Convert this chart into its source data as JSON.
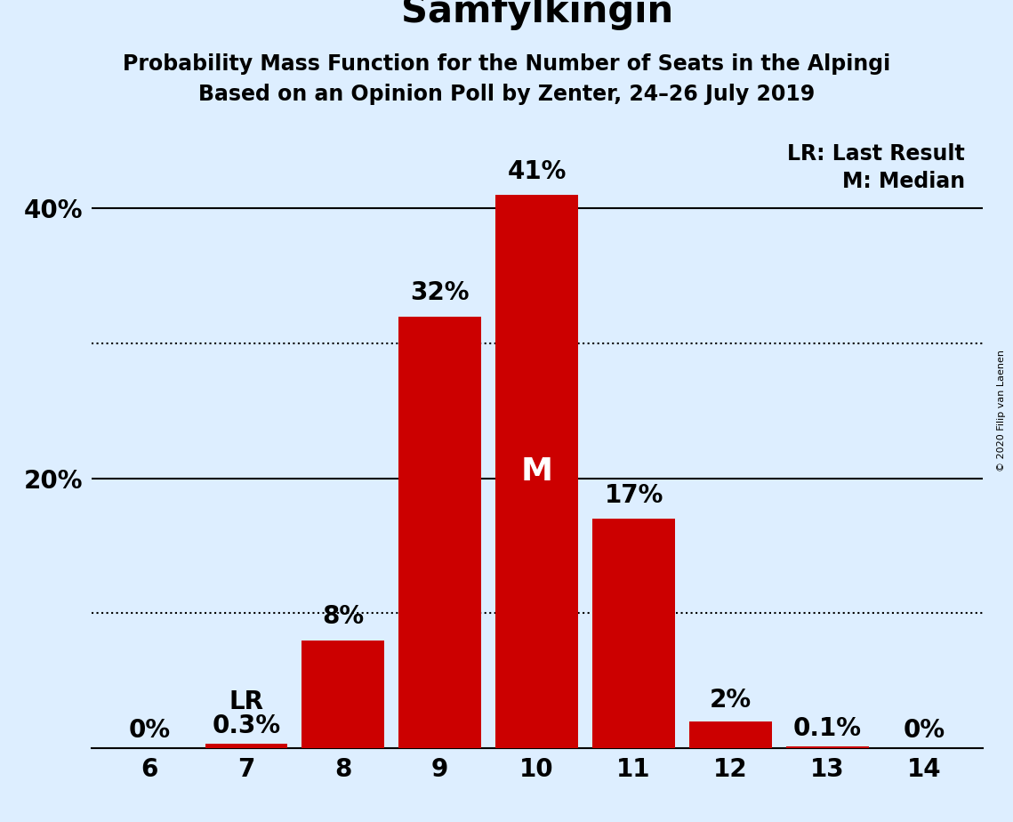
{
  "title": "Samfylkingin",
  "subtitle1": "Probability Mass Function for the Number of Seats in the Alpingi",
  "subtitle2": "Based on an Opinion Poll by Zenter, 24–26 July 2019",
  "copyright": "© 2020 Filip van Laenen",
  "seats": [
    6,
    7,
    8,
    9,
    10,
    11,
    12,
    13,
    14
  ],
  "probabilities": [
    0.0,
    0.3,
    8.0,
    32.0,
    41.0,
    17.0,
    2.0,
    0.1,
    0.0
  ],
  "bar_color": "#cc0000",
  "background_color": "#ddeeff",
  "title_fontsize": 30,
  "subtitle_fontsize": 17,
  "tick_fontsize": 20,
  "bar_label_fontsize": 20,
  "legend_fontsize": 17,
  "copyright_fontsize": 8,
  "ylim_max": 46,
  "yticks": [
    20,
    40
  ],
  "ytick_labels": [
    "20%",
    "40%"
  ],
  "solid_lines": [
    20,
    40
  ],
  "dotted_lines": [
    10,
    30
  ],
  "median_seat": 10,
  "last_result_seat": 7,
  "legend_lr": "LR: Last Result",
  "legend_m": "M: Median",
  "bar_labels": [
    "0%",
    "0.3%",
    "8%",
    "32%",
    "41%",
    "17%",
    "2%",
    "0.1%",
    "0%"
  ]
}
